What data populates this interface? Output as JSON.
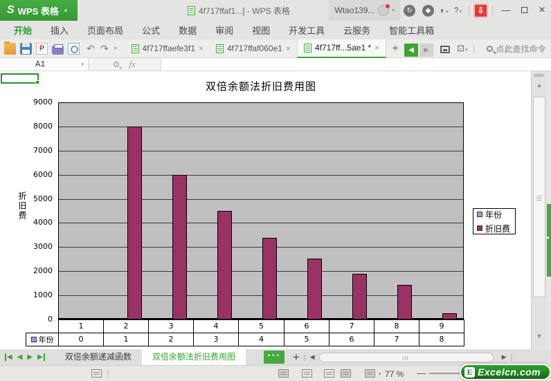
{
  "colors": {
    "wps_green": "#3DA435",
    "download_red": "#E03C3C",
    "brand_green": "#1E8A1E",
    "plot_bg": "#C0C0C0"
  },
  "icons": {
    "caret": "▾",
    "close": "×",
    "minimize": "—",
    "undo": "↶",
    "redo": "↷",
    "prev": "◀",
    "next": "▶",
    "up": "▲",
    "down": "▼",
    "add": "+",
    "more": "···",
    "download": "⇩",
    "help": "?"
  },
  "titlebar": {
    "logo_letter": "S",
    "logo_text": "WPS 表格",
    "doc_title": "4f717ffaf1...] - WPS 表格",
    "account_name": "Wtao139..."
  },
  "menus": [
    {
      "label": "开始",
      "active": true
    },
    {
      "label": "插入"
    },
    {
      "label": "页面布局"
    },
    {
      "label": "公式"
    },
    {
      "label": "数据"
    },
    {
      "label": "审阅"
    },
    {
      "label": "视图"
    },
    {
      "label": "开发工具"
    },
    {
      "label": "云服务"
    },
    {
      "label": "智能工具箱"
    }
  ],
  "doc_tabs": [
    {
      "label": "4f717ffaefe3f1",
      "active": false,
      "modified": ""
    },
    {
      "label": "4f717ffaf060e1",
      "active": false,
      "modified": ""
    },
    {
      "label": "4f717ff...5ae1",
      "active": true,
      "modified": "*"
    }
  ],
  "toolbar": {
    "search_hint": "点此查找命令"
  },
  "formula_bar": {
    "cell_ref": "A1",
    "fx_label": "fx"
  },
  "chart_data": {
    "type": "bar",
    "title": "双倍余额法折旧费用图",
    "ylabel": "折旧费",
    "categories": [
      1,
      2,
      3,
      4,
      5,
      6,
      7,
      8,
      9
    ],
    "series": [
      {
        "name": "年份",
        "color": "#9999FF",
        "values": [
          0,
          1,
          2,
          3,
          4,
          5,
          6,
          7,
          8
        ]
      },
      {
        "name": "折旧费",
        "color": "#993366",
        "values": [
          0,
          8000,
          6000,
          4500,
          3375,
          2531,
          1898,
          1424,
          271
        ]
      }
    ],
    "ylim": [
      0,
      9000
    ],
    "ytick_step": 1000,
    "grid": true,
    "plot_bg": "#C0C0C0",
    "legend_position": "right",
    "data_table_visible_rows": [
      "categories",
      "年份"
    ]
  },
  "sheet_tabs": [
    {
      "label": "双倍余额递减函数",
      "active": false
    },
    {
      "label": "双倍余额法折旧费用图",
      "active": true
    }
  ],
  "status_bar": {
    "zoom_level": "77 %",
    "brand_letter": "E",
    "brand_name": "Excelcn.com"
  }
}
